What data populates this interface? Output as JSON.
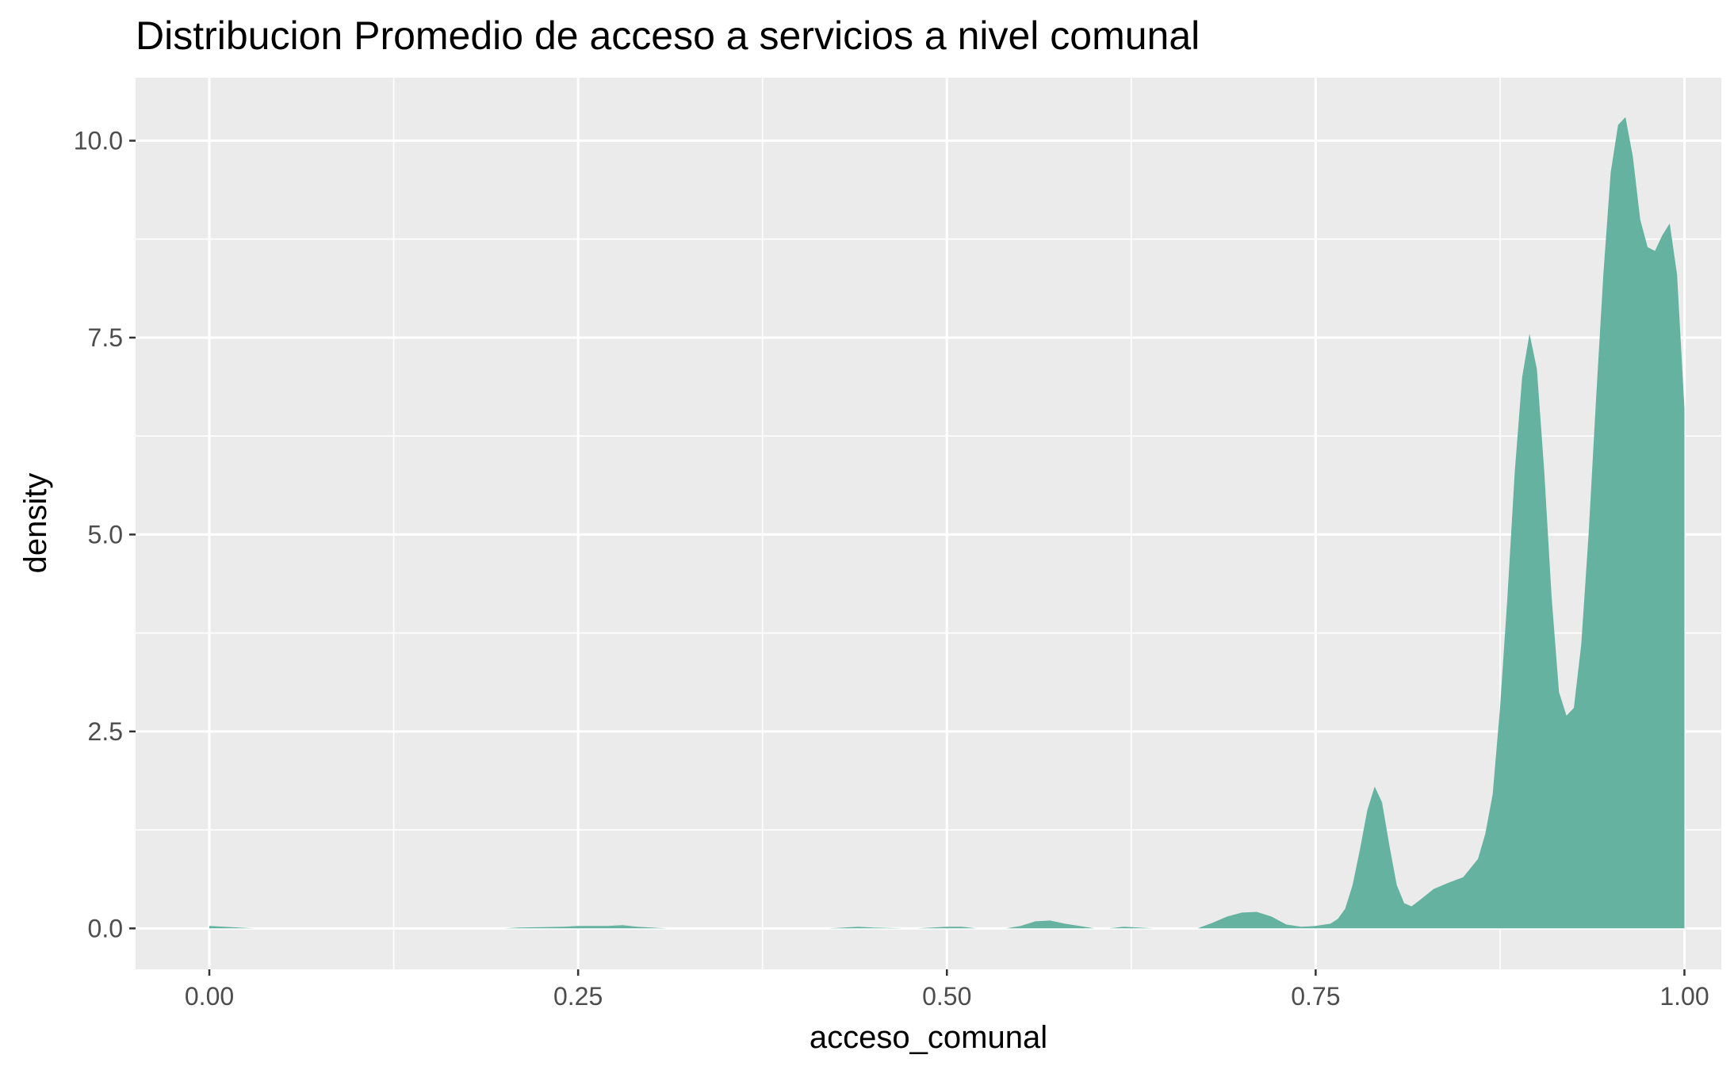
{
  "chart_data": {
    "type": "area",
    "title": "Distribucion Promedio de acceso a servicios a nivel comunal",
    "xlabel": "acceso_comunal",
    "ylabel": "density",
    "xlim": [
      -0.05,
      1.025
    ],
    "ylim": [
      -0.52,
      10.8
    ],
    "x_ticks": [
      0.0,
      0.25,
      0.5,
      0.75,
      1.0
    ],
    "x_tick_labels": [
      "0.00",
      "0.25",
      "0.50",
      "0.75",
      "1.00"
    ],
    "y_ticks": [
      0.0,
      2.5,
      5.0,
      7.5,
      10.0
    ],
    "y_tick_labels": [
      "0.0",
      "2.5",
      "5.0",
      "7.5",
      "10.0"
    ],
    "grid": true,
    "legend": "none",
    "colors": {
      "fill": "#66b2a0",
      "panel": "#ebebeb",
      "grid": "#ffffff"
    },
    "series": [
      {
        "x": [
          0.0,
          0.02,
          0.03,
          0.2,
          0.21,
          0.24,
          0.25,
          0.27,
          0.28,
          0.29,
          0.31,
          0.32,
          0.35,
          0.42,
          0.44,
          0.45,
          0.47,
          0.48,
          0.5,
          0.51,
          0.52,
          0.54,
          0.55,
          0.56,
          0.57,
          0.58,
          0.6,
          0.61,
          0.62,
          0.64,
          0.66,
          0.67,
          0.68,
          0.69,
          0.7,
          0.71,
          0.72,
          0.73,
          0.74,
          0.75,
          0.76,
          0.765,
          0.77,
          0.775,
          0.78,
          0.785,
          0.79,
          0.795,
          0.8,
          0.805,
          0.81,
          0.815,
          0.82,
          0.83,
          0.84,
          0.85,
          0.86,
          0.865,
          0.87,
          0.875,
          0.88,
          0.885,
          0.89,
          0.895,
          0.9,
          0.905,
          0.91,
          0.915,
          0.92,
          0.925,
          0.93,
          0.935,
          0.94,
          0.945,
          0.95,
          0.955,
          0.96,
          0.965,
          0.97,
          0.975,
          0.98,
          0.985,
          0.99,
          0.995,
          1.0
        ],
        "y": [
          0.03,
          0.01,
          0.0,
          0.0,
          0.01,
          0.02,
          0.03,
          0.03,
          0.04,
          0.02,
          0.0,
          0.0,
          0.0,
          0.0,
          0.02,
          0.01,
          0.0,
          0.0,
          0.02,
          0.02,
          0.0,
          0.0,
          0.03,
          0.09,
          0.1,
          0.06,
          0.0,
          0.0,
          0.02,
          0.0,
          0.0,
          0.0,
          0.07,
          0.15,
          0.2,
          0.21,
          0.15,
          0.05,
          0.02,
          0.03,
          0.06,
          0.12,
          0.25,
          0.55,
          1.0,
          1.5,
          1.8,
          1.6,
          1.05,
          0.55,
          0.32,
          0.28,
          0.35,
          0.5,
          0.58,
          0.65,
          0.88,
          1.2,
          1.7,
          2.8,
          4.2,
          5.8,
          7.0,
          7.55,
          7.1,
          5.8,
          4.2,
          3.0,
          2.7,
          2.8,
          3.6,
          5.0,
          6.7,
          8.3,
          9.6,
          10.2,
          10.3,
          9.8,
          9.0,
          8.65,
          8.6,
          8.8,
          8.95,
          8.3,
          6.6
        ]
      }
    ]
  }
}
